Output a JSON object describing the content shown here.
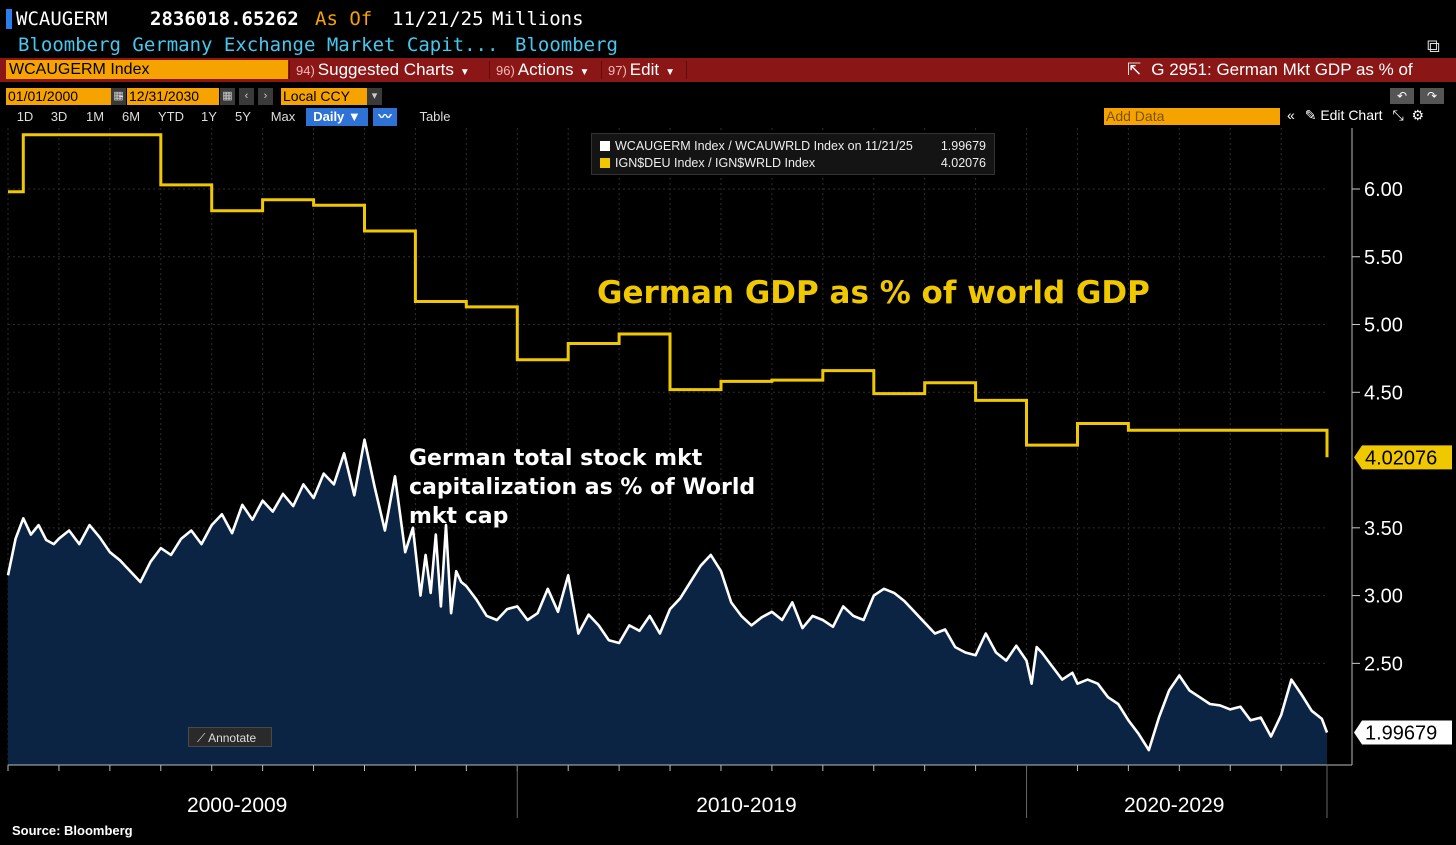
{
  "header": {
    "ticker": "WCAUGERM",
    "last_value": "2836018.65262",
    "as_of_label": "As Of",
    "as_of_date": "11/21/25",
    "units": "Millions",
    "description": "Bloomberg Germany Exchange Market Capit...",
    "source": "Bloomberg"
  },
  "menubar": {
    "security": "WCAUGERM Index",
    "suggested_num": "94)",
    "suggested": "Suggested Charts",
    "actions_num": "96)",
    "actions": "Actions",
    "edit_num": "97)",
    "edit": "Edit",
    "chart_id": "G 2951: German Mkt GDP as % of"
  },
  "range": {
    "start": "01/01/2000",
    "end": "12/31/2030",
    "currency": "Local CCY"
  },
  "tabs": [
    "1D",
    "3D",
    "1M",
    "6M",
    "YTD",
    "1Y",
    "5Y",
    "Max"
  ],
  "frequency": "Daily ▼",
  "table_label": "Table",
  "add_data_placeholder": "Add Data",
  "edit_chart_label": "Edit Chart",
  "annotate_label": "Annotate",
  "footer_source": "Source: Bloomberg",
  "colors": {
    "gdp_line": "#f0c800",
    "mktcap_line": "#ffffff",
    "mktcap_fill": "#0b2444",
    "background": "#000000",
    "grid": "#2e2e2e",
    "orange": "#f6a300",
    "menubar": "#8b1616"
  },
  "chart_data": {
    "type": "line",
    "title": "",
    "xlabel": "",
    "ylabel": "",
    "xlim": [
      2000.0,
      2025.9
    ],
    "ylim": [
      1.75,
      6.45
    ],
    "y_ticks": [
      "6.00",
      "5.50",
      "5.00",
      "4.50",
      "3.50",
      "3.00",
      "2.50"
    ],
    "x_period_labels": [
      "2000-2009",
      "2010-2019",
      "2020-2029"
    ],
    "annotations": [
      "German GDP as % of world GDP",
      "German total stock mkt",
      "capitalization as % of World",
      "mkt cap"
    ],
    "legend": [
      {
        "label": "WCAUGERM Index / WCAUWRLD Index on 11/21/25",
        "value": "1.99679",
        "color": "#ffffff"
      },
      {
        "label": "IGN$DEU Index / IGN$WRLD Index",
        "value": "4.02076",
        "color": "#f0c800"
      }
    ],
    "series": [
      {
        "name": "IGN$DEU Index / IGN$WRLD Index",
        "last_label": "4.02076",
        "step": true,
        "x": [
          2000,
          2000.3,
          2001,
          2002,
          2003,
          2004,
          2005,
          2006,
          2007,
          2008,
          2009,
          2010,
          2011,
          2012,
          2013,
          2014,
          2015,
          2016,
          2017,
          2018,
          2019,
          2020,
          2021,
          2022,
          2023,
          2024,
          2025,
          2025.9
        ],
        "values": [
          5.98,
          6.4,
          6.4,
          6.4,
          6.03,
          5.84,
          5.92,
          5.88,
          5.69,
          5.17,
          5.13,
          4.74,
          4.86,
          4.93,
          4.52,
          4.58,
          4.59,
          4.66,
          4.49,
          4.57,
          4.44,
          4.11,
          4.27,
          4.22,
          4.22,
          4.22,
          4.22,
          4.02
        ]
      },
      {
        "name": "WCAUGERM Index / WCAUWRLD Index",
        "last_label": "1.99679",
        "x": [
          2000.0,
          2000.15,
          2000.3,
          2000.45,
          2000.6,
          2000.75,
          2000.9,
          2001.0,
          2001.2,
          2001.4,
          2001.6,
          2001.8,
          2002.0,
          2002.2,
          2002.4,
          2002.6,
          2002.8,
          2003.0,
          2003.2,
          2003.4,
          2003.6,
          2003.8,
          2004.0,
          2004.2,
          2004.4,
          2004.6,
          2004.8,
          2005.0,
          2005.2,
          2005.4,
          2005.6,
          2005.8,
          2006.0,
          2006.2,
          2006.4,
          2006.6,
          2006.8,
          2007.0,
          2007.2,
          2007.4,
          2007.6,
          2007.8,
          2007.95,
          2008.1,
          2008.2,
          2008.3,
          2008.4,
          2008.5,
          2008.6,
          2008.7,
          2008.8,
          2008.9,
          2009.0,
          2009.2,
          2009.4,
          2009.6,
          2009.8,
          2010.0,
          2010.2,
          2010.4,
          2010.6,
          2010.8,
          2011.0,
          2011.2,
          2011.4,
          2011.6,
          2011.8,
          2012.0,
          2012.2,
          2012.4,
          2012.6,
          2012.8,
          2013.0,
          2013.2,
          2013.4,
          2013.6,
          2013.8,
          2014.0,
          2014.2,
          2014.4,
          2014.6,
          2014.8,
          2015.0,
          2015.2,
          2015.4,
          2015.6,
          2015.8,
          2016.0,
          2016.2,
          2016.4,
          2016.6,
          2016.8,
          2017.0,
          2017.2,
          2017.4,
          2017.6,
          2017.8,
          2018.0,
          2018.2,
          2018.4,
          2018.6,
          2018.8,
          2019.0,
          2019.2,
          2019.4,
          2019.6,
          2019.8,
          2020.0,
          2020.1,
          2020.2,
          2020.3,
          2020.5,
          2020.7,
          2020.9,
          2021.0,
          2021.2,
          2021.4,
          2021.6,
          2021.8,
          2022.0,
          2022.2,
          2022.4,
          2022.6,
          2022.8,
          2023.0,
          2023.2,
          2023.4,
          2023.6,
          2023.8,
          2024.0,
          2024.2,
          2024.4,
          2024.6,
          2024.8,
          2025.0,
          2025.2,
          2025.4,
          2025.6,
          2025.8,
          2025.9
        ],
        "values": [
          3.15,
          3.42,
          3.57,
          3.45,
          3.52,
          3.41,
          3.38,
          3.42,
          3.48,
          3.38,
          3.52,
          3.43,
          3.32,
          3.26,
          3.18,
          3.1,
          3.25,
          3.35,
          3.3,
          3.42,
          3.48,
          3.38,
          3.52,
          3.6,
          3.46,
          3.67,
          3.56,
          3.7,
          3.62,
          3.75,
          3.66,
          3.82,
          3.72,
          3.9,
          3.82,
          4.05,
          3.74,
          4.15,
          3.8,
          3.48,
          3.88,
          3.32,
          3.5,
          3.0,
          3.3,
          3.02,
          3.45,
          2.92,
          3.52,
          2.87,
          3.18,
          3.1,
          3.07,
          2.97,
          2.85,
          2.82,
          2.9,
          2.92,
          2.82,
          2.87,
          3.05,
          2.88,
          3.15,
          2.72,
          2.86,
          2.78,
          2.67,
          2.65,
          2.78,
          2.74,
          2.85,
          2.72,
          2.9,
          2.98,
          3.1,
          3.22,
          3.3,
          3.18,
          2.95,
          2.85,
          2.78,
          2.84,
          2.88,
          2.82,
          2.95,
          2.76,
          2.85,
          2.82,
          2.77,
          2.92,
          2.85,
          2.82,
          3.0,
          3.05,
          3.02,
          2.96,
          2.88,
          2.8,
          2.72,
          2.75,
          2.62,
          2.58,
          2.56,
          2.72,
          2.58,
          2.52,
          2.63,
          2.52,
          2.35,
          2.62,
          2.58,
          2.48,
          2.38,
          2.43,
          2.35,
          2.38,
          2.35,
          2.25,
          2.2,
          2.08,
          1.98,
          1.86,
          2.1,
          2.3,
          2.41,
          2.3,
          2.25,
          2.2,
          2.19,
          2.16,
          2.18,
          2.08,
          2.1,
          1.96,
          2.12,
          2.38,
          2.27,
          2.15,
          2.09,
          1.99
        ]
      }
    ]
  }
}
